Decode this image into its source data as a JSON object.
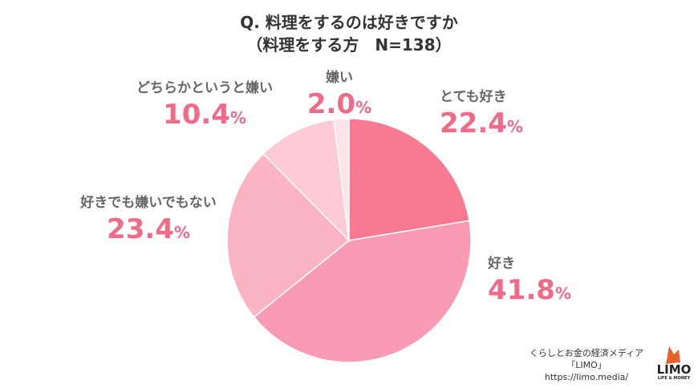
{
  "title_line1": "Q. 料理をするのは好きですか",
  "title_line2": "（料理をする方　N=138）",
  "chart_data": {
    "type": "pie",
    "title": "Q. 料理をするのは好きですか（料理をする方　N=138）",
    "categories": [
      "とても好き",
      "好き",
      "好きでも嫌いでもない",
      "どちらかというと嫌い",
      "嫌い"
    ],
    "values": [
      22.4,
      41.8,
      23.4,
      10.4,
      2.0
    ],
    "unit": "%",
    "colors": [
      "#f77a92",
      "#f99bb4",
      "#fbb4c4",
      "#fccbd6",
      "#fde3ea"
    ],
    "start": "12 o'clock, clockwise"
  },
  "labels": [
    {
      "name": "とても好き",
      "num": "22.4",
      "unit": "%"
    },
    {
      "name": "好き",
      "num": "41.8",
      "unit": "%"
    },
    {
      "name": "好きでも嫌いでもない",
      "num": "23.4",
      "unit": "%"
    },
    {
      "name": "どちらかというと嫌い",
      "num": "10.4",
      "unit": "%"
    },
    {
      "name": "嫌い",
      "num": "2.0",
      "unit": "%"
    }
  ],
  "credit": {
    "line1": "くらしとお金の経済メディア",
    "line2": "「LIMO」",
    "line3": "https://limo.media/"
  },
  "logo": {
    "text": "LIMO",
    "sub": "LIFE & MONEY"
  }
}
